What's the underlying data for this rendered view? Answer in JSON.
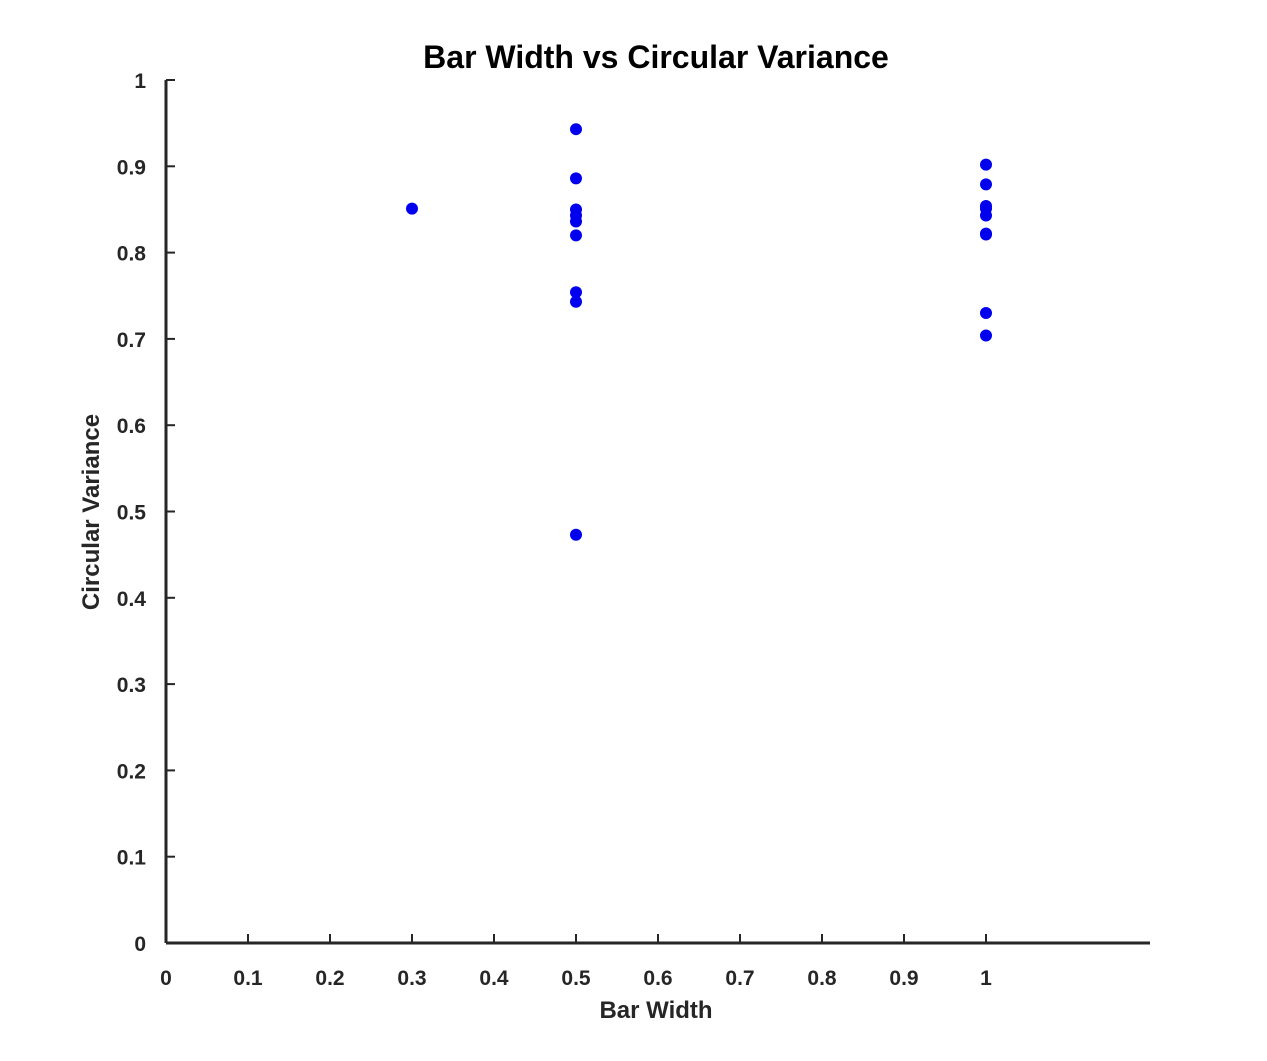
{
  "chart_data": {
    "type": "scatter",
    "title": "Bar Width vs Circular Variance",
    "xlabel": "Bar Width",
    "ylabel": "Circular Variance",
    "xlim": [
      0,
      1.2
    ],
    "ylim": [
      0,
      1
    ],
    "xticks": [
      "0",
      "0.1",
      "0.2",
      "0.3",
      "0.4",
      "0.5",
      "0.6",
      "0.7",
      "0.8",
      "0.9",
      "1"
    ],
    "yticks": [
      "0",
      "0.1",
      "0.2",
      "0.3",
      "0.4",
      "0.5",
      "0.6",
      "0.7",
      "0.8",
      "0.9",
      "1"
    ],
    "grid": false,
    "colors": {
      "point": "#0000ee",
      "axis": "#262626"
    },
    "points": [
      {
        "x": 0.3,
        "y": 0.851
      },
      {
        "x": 0.5,
        "y": 0.943
      },
      {
        "x": 0.5,
        "y": 0.886
      },
      {
        "x": 0.5,
        "y": 0.85
      },
      {
        "x": 0.5,
        "y": 0.843
      },
      {
        "x": 0.5,
        "y": 0.836
      },
      {
        "x": 0.5,
        "y": 0.82
      },
      {
        "x": 0.5,
        "y": 0.754
      },
      {
        "x": 0.5,
        "y": 0.743
      },
      {
        "x": 0.5,
        "y": 0.473
      },
      {
        "x": 1.0,
        "y": 0.902
      },
      {
        "x": 1.0,
        "y": 0.879
      },
      {
        "x": 1.0,
        "y": 0.854
      },
      {
        "x": 1.0,
        "y": 0.851
      },
      {
        "x": 1.0,
        "y": 0.843
      },
      {
        "x": 1.0,
        "y": 0.822
      },
      {
        "x": 1.0,
        "y": 0.821
      },
      {
        "x": 1.0,
        "y": 0.73
      },
      {
        "x": 1.0,
        "y": 0.704
      }
    ]
  }
}
